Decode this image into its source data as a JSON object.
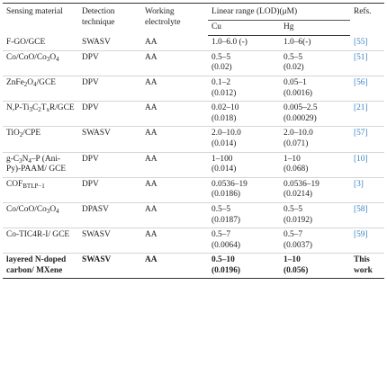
{
  "table": {
    "header": {
      "material": "Sensing material",
      "technique": "Detection technique",
      "electrolyte": "Working electrolyte",
      "range": "Linear range (LOD)(μM)",
      "cu": "Cu",
      "hg": "Hg",
      "refs": "Refs."
    },
    "rows": [
      {
        "material": [
          "F-GO/GCE"
        ],
        "technique": "SWASV",
        "electrolyte": "AA",
        "cu": [
          "1.0–6.0 (-)"
        ],
        "hg": [
          "1.0–6(-)"
        ],
        "ref": "[55]"
      },
      {
        "material": [
          "Co/CoO/Co",
          {
            "sub": "3"
          },
          "O",
          {
            "sub": "4"
          }
        ],
        "technique": "DPV",
        "electrolyte": "AA",
        "cu": [
          "0.5–5",
          "(0.02)"
        ],
        "hg": [
          "0.5–5",
          "(0.02)"
        ],
        "ref": "[51]"
      },
      {
        "material": [
          "ZnFe",
          {
            "sub": "2"
          },
          "O",
          {
            "sub": "4"
          },
          "/GCE"
        ],
        "technique": "DPV",
        "electrolyte": "AA",
        "cu": [
          "0.1–2",
          "(0.012)"
        ],
        "hg": [
          "0.05–1",
          "(0.0016)"
        ],
        "ref": "[56]"
      },
      {
        "material": [
          "N,P-Ti",
          {
            "sub": "3"
          },
          "C",
          {
            "sub": "2"
          },
          "T",
          {
            "sub": "x"
          },
          "R/GCE"
        ],
        "technique": "DPV",
        "electrolyte": "AA",
        "cu": [
          "0.02–10",
          "(0.018)"
        ],
        "hg": [
          "0.005–2.5",
          "(0.00029)"
        ],
        "ref": "[21]"
      },
      {
        "material": [
          "TiO",
          {
            "sub": "2"
          },
          "/CPE"
        ],
        "technique": "SWASV",
        "electrolyte": "AA",
        "cu": [
          "2.0–10.0",
          "(0.014)"
        ],
        "hg": [
          "2.0–10.0",
          "(0.071)"
        ],
        "ref": "[57]"
      },
      {
        "material": [
          "g-C",
          {
            "sub": "3"
          },
          "N",
          {
            "sub": "4"
          },
          "–P (Ani-Py)-PAAM/ GCE"
        ],
        "technique": "DPV",
        "electrolyte": "AA",
        "cu": [
          "1–100",
          "(0.014)"
        ],
        "hg": [
          "1–10",
          "(0.068)"
        ],
        "ref": "[10]"
      },
      {
        "material": [
          "COF",
          {
            "sub": "BTLP−1"
          }
        ],
        "technique": "DPV",
        "electrolyte": "AA",
        "cu": [
          "0.0536–19",
          "(0.0186)"
        ],
        "hg": [
          "0.0536–19",
          "(0.0214)"
        ],
        "ref": "[3]"
      },
      {
        "material": [
          "Co/CoO/Co",
          {
            "sub": "3"
          },
          "O",
          {
            "sub": "4"
          }
        ],
        "technique": "DPASV",
        "electrolyte": "AA",
        "cu": [
          "0.5–5",
          "(0.0187)"
        ],
        "hg": [
          "0.5–5",
          "(0.0192)"
        ],
        "ref": "[58]"
      },
      {
        "material": [
          "Co-TIC4R-I/ GCE"
        ],
        "technique": "SWASV",
        "electrolyte": "AA",
        "cu": [
          "0.5–7",
          "(0.0064)"
        ],
        "hg": [
          "0.5–7",
          "(0.0037)"
        ],
        "ref": "[59]"
      },
      {
        "material": [
          "layered N-doped carbon/ MXene"
        ],
        "technique": "SWASV",
        "electrolyte": "AA",
        "cu": [
          "0.5–10",
          "(0.0196)"
        ],
        "hg": [
          "1–10",
          "(0.056)"
        ],
        "ref": "This work"
      }
    ]
  }
}
